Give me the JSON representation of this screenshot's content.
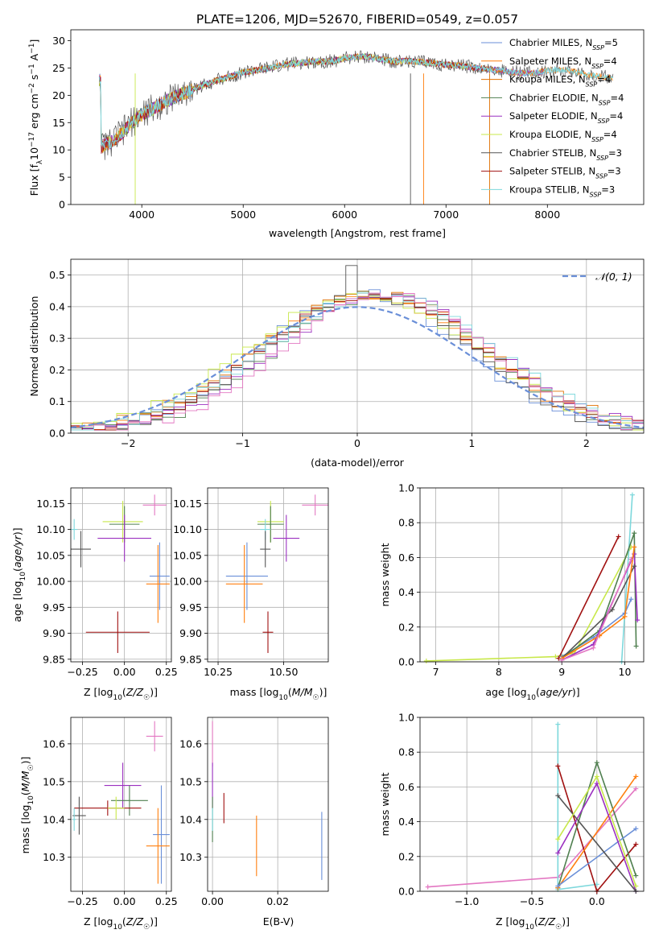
{
  "title": "PLATE=1206, MJD=52670, FIBERID=0549, z=0.057",
  "colors": {
    "Chabrier MILES": "#6a8fd8",
    "Salpeter MILES": "#ff7f0e",
    "Kroupa MILES": "#e07000",
    "Chabrier ELODIE": "#4f7f4f",
    "Salpeter ELODIE": "#9b30c0",
    "Kroupa ELODIE": "#c8e84a",
    "Chabrier STELIB": "#555555",
    "Salpeter STELIB": "#a01010",
    "Kroupa STELIB": "#7dd8dc",
    "pink": "#e377c2",
    "normal": "#6a8fd8"
  },
  "chart_data": [
    {
      "type": "line",
      "panel": "spectrum",
      "xlabel": "wavelength [Angstrom, rest frame]",
      "ylabel": "Flux [f_λ 10^-17 erg cm^-2 s^-1 A^-1]",
      "xlim": [
        3300,
        8950
      ],
      "ylim": [
        0,
        32
      ],
      "xticks": [
        4000,
        5000,
        6000,
        7000,
        8000
      ],
      "yticks": [
        0,
        5,
        10,
        15,
        20,
        25,
        30
      ],
      "grid": false,
      "legend_position": "right",
      "legend": [
        {
          "name": "Chabrier MILES",
          "label": "Chabrier MILES, N",
          "sub": "SSP",
          "tail": "=5"
        },
        {
          "name": "Salpeter MILES",
          "label": "Salpeter MILES, N",
          "sub": "SSP",
          "tail": "=4"
        },
        {
          "name": "Kroupa MILES",
          "label": "Kroupa MILES, N",
          "sub": "SSP",
          "tail": "=4"
        },
        {
          "name": "Chabrier ELODIE",
          "label": "Chabrier ELODIE, N",
          "sub": "SSP",
          "tail": "=4"
        },
        {
          "name": "Salpeter ELODIE",
          "label": "Salpeter ELODIE, N",
          "sub": "SSP",
          "tail": "=4"
        },
        {
          "name": "Kroupa ELODIE",
          "label": "Kroupa ELODIE, N",
          "sub": "SSP",
          "tail": "=4"
        },
        {
          "name": "Chabrier STELIB",
          "label": "Chabrier STELIB, N",
          "sub": "SSP",
          "tail": "=3"
        },
        {
          "name": "Salpeter STELIB",
          "label": "Salpeter STELIB, N",
          "sub": "SSP",
          "tail": "=3"
        },
        {
          "name": "Kroupa STELIB",
          "label": "Kroupa STELIB, N",
          "sub": "SSP",
          "tail": "=3"
        }
      ],
      "continuum": {
        "wavelength": [
          3600,
          3700,
          3800,
          3900,
          4000,
          4100,
          4200,
          4300,
          4400,
          4500,
          4600,
          4700,
          4800,
          4900,
          5000,
          5100,
          5200,
          5300,
          5400,
          5500,
          5600,
          5700,
          5800,
          5900,
          6000,
          6100,
          6200,
          6300,
          6400,
          6500,
          6600,
          6700,
          6800,
          6900,
          7000,
          7100,
          7200,
          7300,
          7400,
          7500,
          7600,
          7700,
          7800,
          7900,
          8000,
          8100,
          8200,
          8300,
          8400,
          8500,
          8600,
          8800
        ],
        "flux": [
          10.5,
          11.5,
          13,
          15,
          16.5,
          17.5,
          18.5,
          19.5,
          20.3,
          21,
          21.8,
          22.5,
          23,
          23.6,
          24.2,
          24.5,
          24.8,
          25.2,
          25.6,
          25.8,
          26,
          26.2,
          26.2,
          26.3,
          26.8,
          27,
          27.1,
          26.8,
          26.5,
          26.2,
          26.3,
          26.2,
          26,
          25.8,
          25.6,
          25.5,
          25.3,
          25,
          24.8,
          24.6,
          24.4,
          24.2,
          24,
          24.2,
          24.5,
          24.7,
          24.6,
          24.2,
          23.8,
          23.5,
          23.3,
          22.8
        ]
      }
    },
    {
      "type": "line",
      "panel": "residuals",
      "xlabel": "(data-model)/error",
      "ylabel": "Normed distribution",
      "xlim": [
        -2.5,
        2.5
      ],
      "ylim": [
        0,
        0.55
      ],
      "xticks": [
        -2,
        -1,
        0,
        1,
        2
      ],
      "yticks": [
        0.0,
        0.1,
        0.2,
        0.3,
        0.4,
        0.5
      ],
      "grid": true,
      "legend_position": "top-right",
      "legend": [
        {
          "name": "normal",
          "label": "𝒩(0, 1)"
        }
      ],
      "bin_width": 0.1,
      "bin_start": -2.5
    },
    {
      "type": "scatter",
      "panel": "age-vs-Z",
      "xlabel": "Z [log10(Z/Z☉)]",
      "ylabel": "age [log10(age/yr)]",
      "xlim": [
        -0.32,
        0.28
      ],
      "ylim": [
        9.845,
        10.18
      ],
      "xticks": [
        -0.25,
        0.0,
        0.25
      ],
      "yticks": [
        9.85,
        9.9,
        9.95,
        10.0,
        10.05,
        10.1,
        10.15
      ],
      "points": [
        {
          "series": "pink",
          "x": 0.18,
          "y": 10.147,
          "xerr": 0.07,
          "yerr": 0.02
        },
        {
          "series": "Kroupa ELODIE",
          "x": -0.01,
          "y": 10.115,
          "xerr": 0.12,
          "yerr": 0.04
        },
        {
          "series": "Chabrier ELODIE",
          "x": 0.0,
          "y": 10.11,
          "xerr": 0.09,
          "yerr": 0.035
        },
        {
          "series": "Kroupa STELIB",
          "x": -0.3,
          "y": 10.1,
          "xerr": 0.02,
          "yerr": 0.02
        },
        {
          "series": "Salpeter ELODIE",
          "x": 0.0,
          "y": 10.083,
          "xerr": 0.16,
          "yerr": 0.045
        },
        {
          "series": "Chabrier STELIB",
          "x": -0.26,
          "y": 10.062,
          "xerr": 0.06,
          "yerr": 0.035
        },
        {
          "series": "Chabrier MILES",
          "x": 0.21,
          "y": 10.01,
          "xerr": 0.06,
          "yerr": 0.065
        },
        {
          "series": "Salpeter MILES",
          "x": 0.2,
          "y": 9.995,
          "xerr": 0.07,
          "yerr": 0.075
        },
        {
          "series": "Salpeter STELIB",
          "x": -0.04,
          "y": 9.902,
          "xerr": 0.19,
          "yerr": 0.04
        }
      ]
    },
    {
      "type": "scatter",
      "panel": "age-vs-mass",
      "xlabel": "mass [log10(M/M☉)]",
      "ylabel": "",
      "xlim": [
        10.21,
        10.67
      ],
      "ylim": [
        9.845,
        10.18
      ],
      "xticks": [
        10.25,
        10.5
      ],
      "yticks": [
        9.85,
        9.9,
        9.95,
        10.0,
        10.05,
        10.1,
        10.15
      ],
      "points": [
        {
          "series": "pink",
          "x": 10.62,
          "y": 10.147,
          "xerr": 0.05,
          "yerr": 0.02
        },
        {
          "series": "Kroupa ELODIE",
          "x": 10.45,
          "y": 10.115,
          "xerr": 0.05,
          "yerr": 0.04
        },
        {
          "series": "Chabrier ELODIE",
          "x": 10.45,
          "y": 10.11,
          "xerr": 0.05,
          "yerr": 0.035
        },
        {
          "series": "Kroupa STELIB",
          "x": 10.43,
          "y": 10.1,
          "xerr": 0.02,
          "yerr": 0.02
        },
        {
          "series": "Salpeter ELODIE",
          "x": 10.51,
          "y": 10.083,
          "xerr": 0.05,
          "yerr": 0.045
        },
        {
          "series": "Chabrier STELIB",
          "x": 10.43,
          "y": 10.062,
          "xerr": 0.02,
          "yerr": 0.035
        },
        {
          "series": "Chabrier MILES",
          "x": 10.36,
          "y": 10.01,
          "xerr": 0.08,
          "yerr": 0.065
        },
        {
          "series": "Salpeter MILES",
          "x": 10.35,
          "y": 9.995,
          "xerr": 0.07,
          "yerr": 0.075
        },
        {
          "series": "Salpeter STELIB",
          "x": 10.44,
          "y": 9.902,
          "xerr": 0.02,
          "yerr": 0.04
        }
      ]
    },
    {
      "type": "line",
      "panel": "mass-weight-vs-age",
      "xlabel": "age [log10(age/yr)]",
      "ylabel": "mass weight",
      "xlim": [
        6.75,
        10.3
      ],
      "ylim": [
        0,
        1.0
      ],
      "xticks": [
        7,
        8,
        9,
        10
      ],
      "yticks": [
        0.0,
        0.2,
        0.4,
        0.6,
        0.8,
        1.0
      ],
      "grid": true,
      "series": [
        {
          "name": "Kroupa ELODIE",
          "x": [
            6.85,
            8.9,
            9.2,
            10.1
          ],
          "y": [
            0.005,
            0.03,
            0.05,
            0.66
          ]
        },
        {
          "name": "Salpeter STELIB",
          "x": [
            8.95,
            9.9
          ],
          "y": [
            0.02,
            0.72
          ]
        },
        {
          "name": "Kroupa STELIB",
          "x": [
            9.95,
            10.12
          ],
          "y": [
            0.0,
            0.96
          ]
        },
        {
          "name": "Chabrier MILES",
          "x": [
            9.0,
            9.5,
            10.0,
            10.1
          ],
          "y": [
            0.03,
            0.14,
            0.28,
            0.36
          ]
        },
        {
          "name": "Chabrier ELODIE",
          "x": [
            9.0,
            9.6,
            10.15,
            10.18
          ],
          "y": [
            0.02,
            0.18,
            0.74,
            0.09
          ]
        },
        {
          "name": "Salpeter ELODIE",
          "x": [
            9.0,
            9.5,
            10.15,
            10.2
          ],
          "y": [
            0.01,
            0.1,
            0.62,
            0.24
          ]
        },
        {
          "name": "Chabrier STELIB",
          "x": [
            9.0,
            9.8,
            10.15
          ],
          "y": [
            0.02,
            0.3,
            0.55
          ]
        },
        {
          "name": "Salpeter MILES",
          "x": [
            9.0,
            9.6,
            10.0,
            10.15
          ],
          "y": [
            0.02,
            0.15,
            0.26,
            0.66
          ]
        },
        {
          "name": "pink",
          "x": [
            9.0,
            9.5,
            10.1
          ],
          "y": [
            0.01,
            0.08,
            0.59
          ]
        }
      ]
    },
    {
      "type": "scatter",
      "panel": "mass-vs-Z",
      "xlabel": "Z [log10(Z/Z☉)]",
      "ylabel": "mass [log10(M/M☉)]",
      "xlim": [
        -0.32,
        0.28
      ],
      "ylim": [
        10.21,
        10.67
      ],
      "xticks": [
        -0.25,
        0.0,
        0.25
      ],
      "yticks": [
        10.3,
        10.4,
        10.5,
        10.6
      ],
      "points": [
        {
          "series": "pink",
          "x": 0.18,
          "y": 10.62,
          "xerr": 0.05,
          "yerr": 0.04
        },
        {
          "series": "Salpeter ELODIE",
          "x": -0.01,
          "y": 10.49,
          "xerr": 0.11,
          "yerr": 0.06
        },
        {
          "series": "Chabrier ELODIE",
          "x": 0.03,
          "y": 10.45,
          "xerr": 0.11,
          "yerr": 0.04
        },
        {
          "series": "Salpeter STELIB",
          "x": -0.1,
          "y": 10.43,
          "xerr": 0.2,
          "yerr": 0.02
        },
        {
          "series": "Kroupa ELODIE",
          "x": -0.05,
          "y": 10.43,
          "xerr": 0.05,
          "yerr": 0.03
        },
        {
          "series": "Chabrier STELIB",
          "x": -0.27,
          "y": 10.41,
          "xerr": 0.04,
          "yerr": 0.05
        },
        {
          "series": "Kroupa STELIB",
          "x": -0.3,
          "y": 10.4,
          "xerr": 0.01,
          "yerr": 0.03
        },
        {
          "series": "Chabrier MILES",
          "x": 0.22,
          "y": 10.36,
          "xerr": 0.05,
          "yerr": 0.13
        },
        {
          "series": "Salpeter MILES",
          "x": 0.2,
          "y": 10.33,
          "xerr": 0.07,
          "yerr": 0.1
        }
      ]
    },
    {
      "type": "scatter",
      "panel": "mass-vs-EBV",
      "xlabel": "E(B-V)",
      "ylabel": "",
      "xlim": [
        -0.0015,
        0.0355
      ],
      "ylim": [
        10.21,
        10.67
      ],
      "xticks": [
        0.0,
        0.02
      ],
      "yticks": [
        10.3,
        10.4,
        10.5,
        10.6
      ],
      "points": [
        {
          "series": "pink",
          "x": 0.0,
          "y": 10.6,
          "yerr": 0.06
        },
        {
          "series": "Salpeter ELODIE",
          "x": 0.0,
          "y": 10.49,
          "yerr": 0.06
        },
        {
          "series": "Salpeter STELIB",
          "x": 0.0035,
          "y": 10.43,
          "yerr": 0.04
        },
        {
          "series": "Chabrier ELODIE",
          "x": 0.0,
          "y": 10.4,
          "yerr": 0.06
        },
        {
          "series": "Kroupa STELIB",
          "x": 0.0,
          "y": 10.4,
          "yerr": 0.03
        },
        {
          "series": "Salpeter MILES",
          "x": 0.0135,
          "y": 10.33,
          "yerr": 0.08
        },
        {
          "series": "Chabrier MILES",
          "x": 0.0335,
          "y": 10.33,
          "yerr": 0.09
        }
      ]
    },
    {
      "type": "line",
      "panel": "mass-weight-vs-Z",
      "xlabel": "Z [log10(Z/Z☉)]",
      "ylabel": "mass weight",
      "xlim": [
        -1.36,
        0.36
      ],
      "ylim": [
        0,
        1.0
      ],
      "xticks": [
        -1.0,
        -0.5,
        0.0
      ],
      "yticks": [
        0.0,
        0.2,
        0.4,
        0.6,
        0.8,
        1.0
      ],
      "grid": true,
      "series": [
        {
          "name": "pink",
          "x": [
            -1.3,
            -0.3,
            0.3
          ],
          "y": [
            0.025,
            0.08,
            0.59
          ]
        },
        {
          "name": "Kroupa STELIB",
          "x": [
            -0.3,
            -0.3,
            0.0
          ],
          "y": [
            0.96,
            0.01,
            0.04
          ]
        },
        {
          "name": "Salpeter STELIB",
          "x": [
            -0.3,
            0.0,
            0.3
          ],
          "y": [
            0.72,
            0.0,
            0.27
          ]
        },
        {
          "name": "Chabrier ELODIE",
          "x": [
            -0.3,
            0.0,
            0.3
          ],
          "y": [
            0.02,
            0.74,
            0.09
          ]
        },
        {
          "name": "Salpeter MILES",
          "x": [
            -0.3,
            0.3
          ],
          "y": [
            0.02,
            0.66
          ]
        },
        {
          "name": "Chabrier MILES",
          "x": [
            -0.3,
            0.3
          ],
          "y": [
            0.03,
            0.36
          ]
        },
        {
          "name": "Salpeter ELODIE",
          "x": [
            -0.3,
            0.0,
            0.3
          ],
          "y": [
            0.22,
            0.62,
            0.0
          ]
        },
        {
          "name": "Chabrier STELIB",
          "x": [
            -0.3,
            0.3
          ],
          "y": [
            0.55,
            0.0
          ]
        },
        {
          "name": "Kroupa ELODIE",
          "x": [
            -0.3,
            0.0,
            0.3
          ],
          "y": [
            0.3,
            0.66,
            0.03
          ]
        }
      ]
    }
  ]
}
